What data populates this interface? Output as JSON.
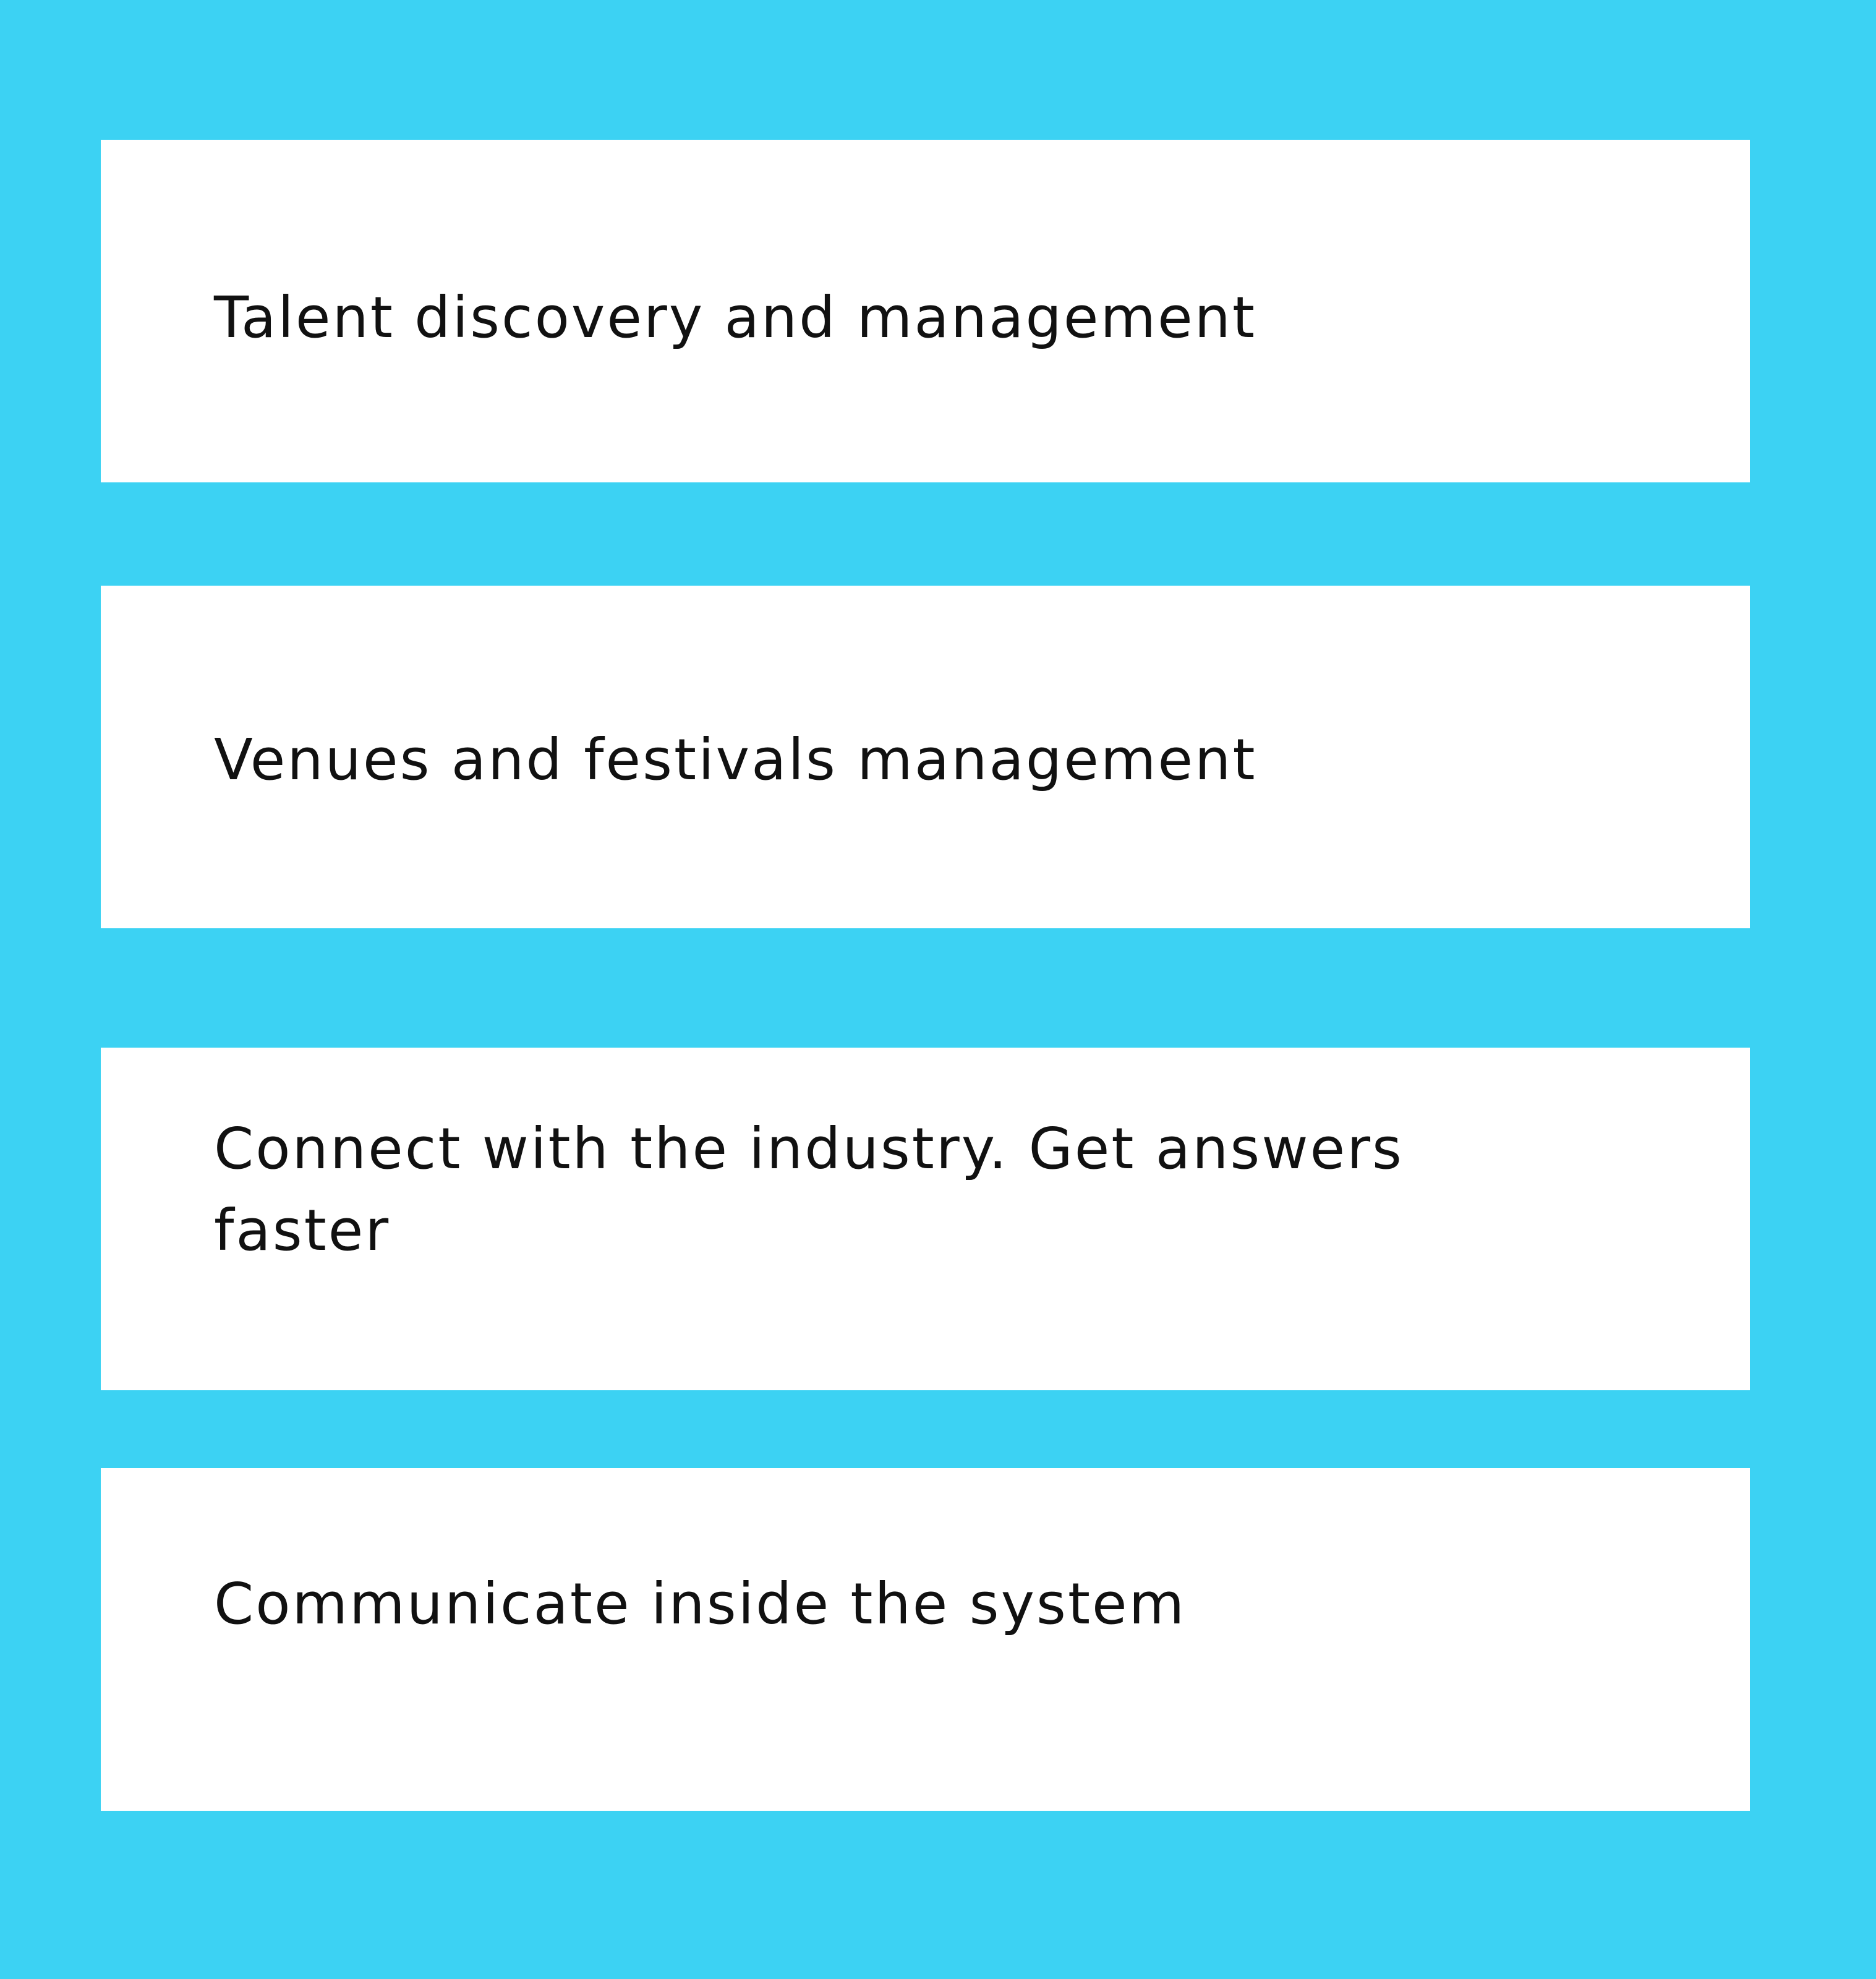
{
  "colors": {
    "background": "#3cd2f3",
    "card": "#ffffff",
    "text": "#111111"
  },
  "features": [
    {
      "label": "Talent discovery and management"
    },
    {
      "label": "Venues and festivals management"
    },
    {
      "label": "Connect with the industry. Get answers faster"
    },
    {
      "label": "Communicate inside the system"
    }
  ]
}
